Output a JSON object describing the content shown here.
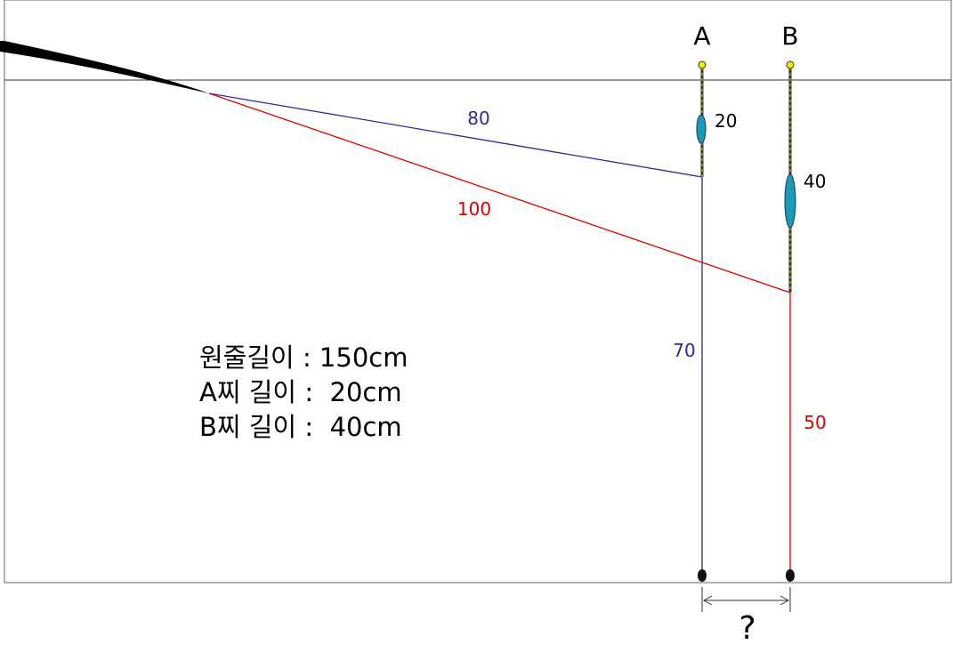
{
  "floats": {
    "a": {
      "label": "A",
      "length": "20"
    },
    "b": {
      "label": "B",
      "length": "40"
    }
  },
  "lines": {
    "blue_slant": "80",
    "red_slant": "100",
    "blue_vertical": "70",
    "red_vertical": "50"
  },
  "question": "?",
  "info": [
    "원줄길이 : 150cm",
    "A찌 길이 :  20cm",
    "B찌 길이 :  40cm"
  ]
}
